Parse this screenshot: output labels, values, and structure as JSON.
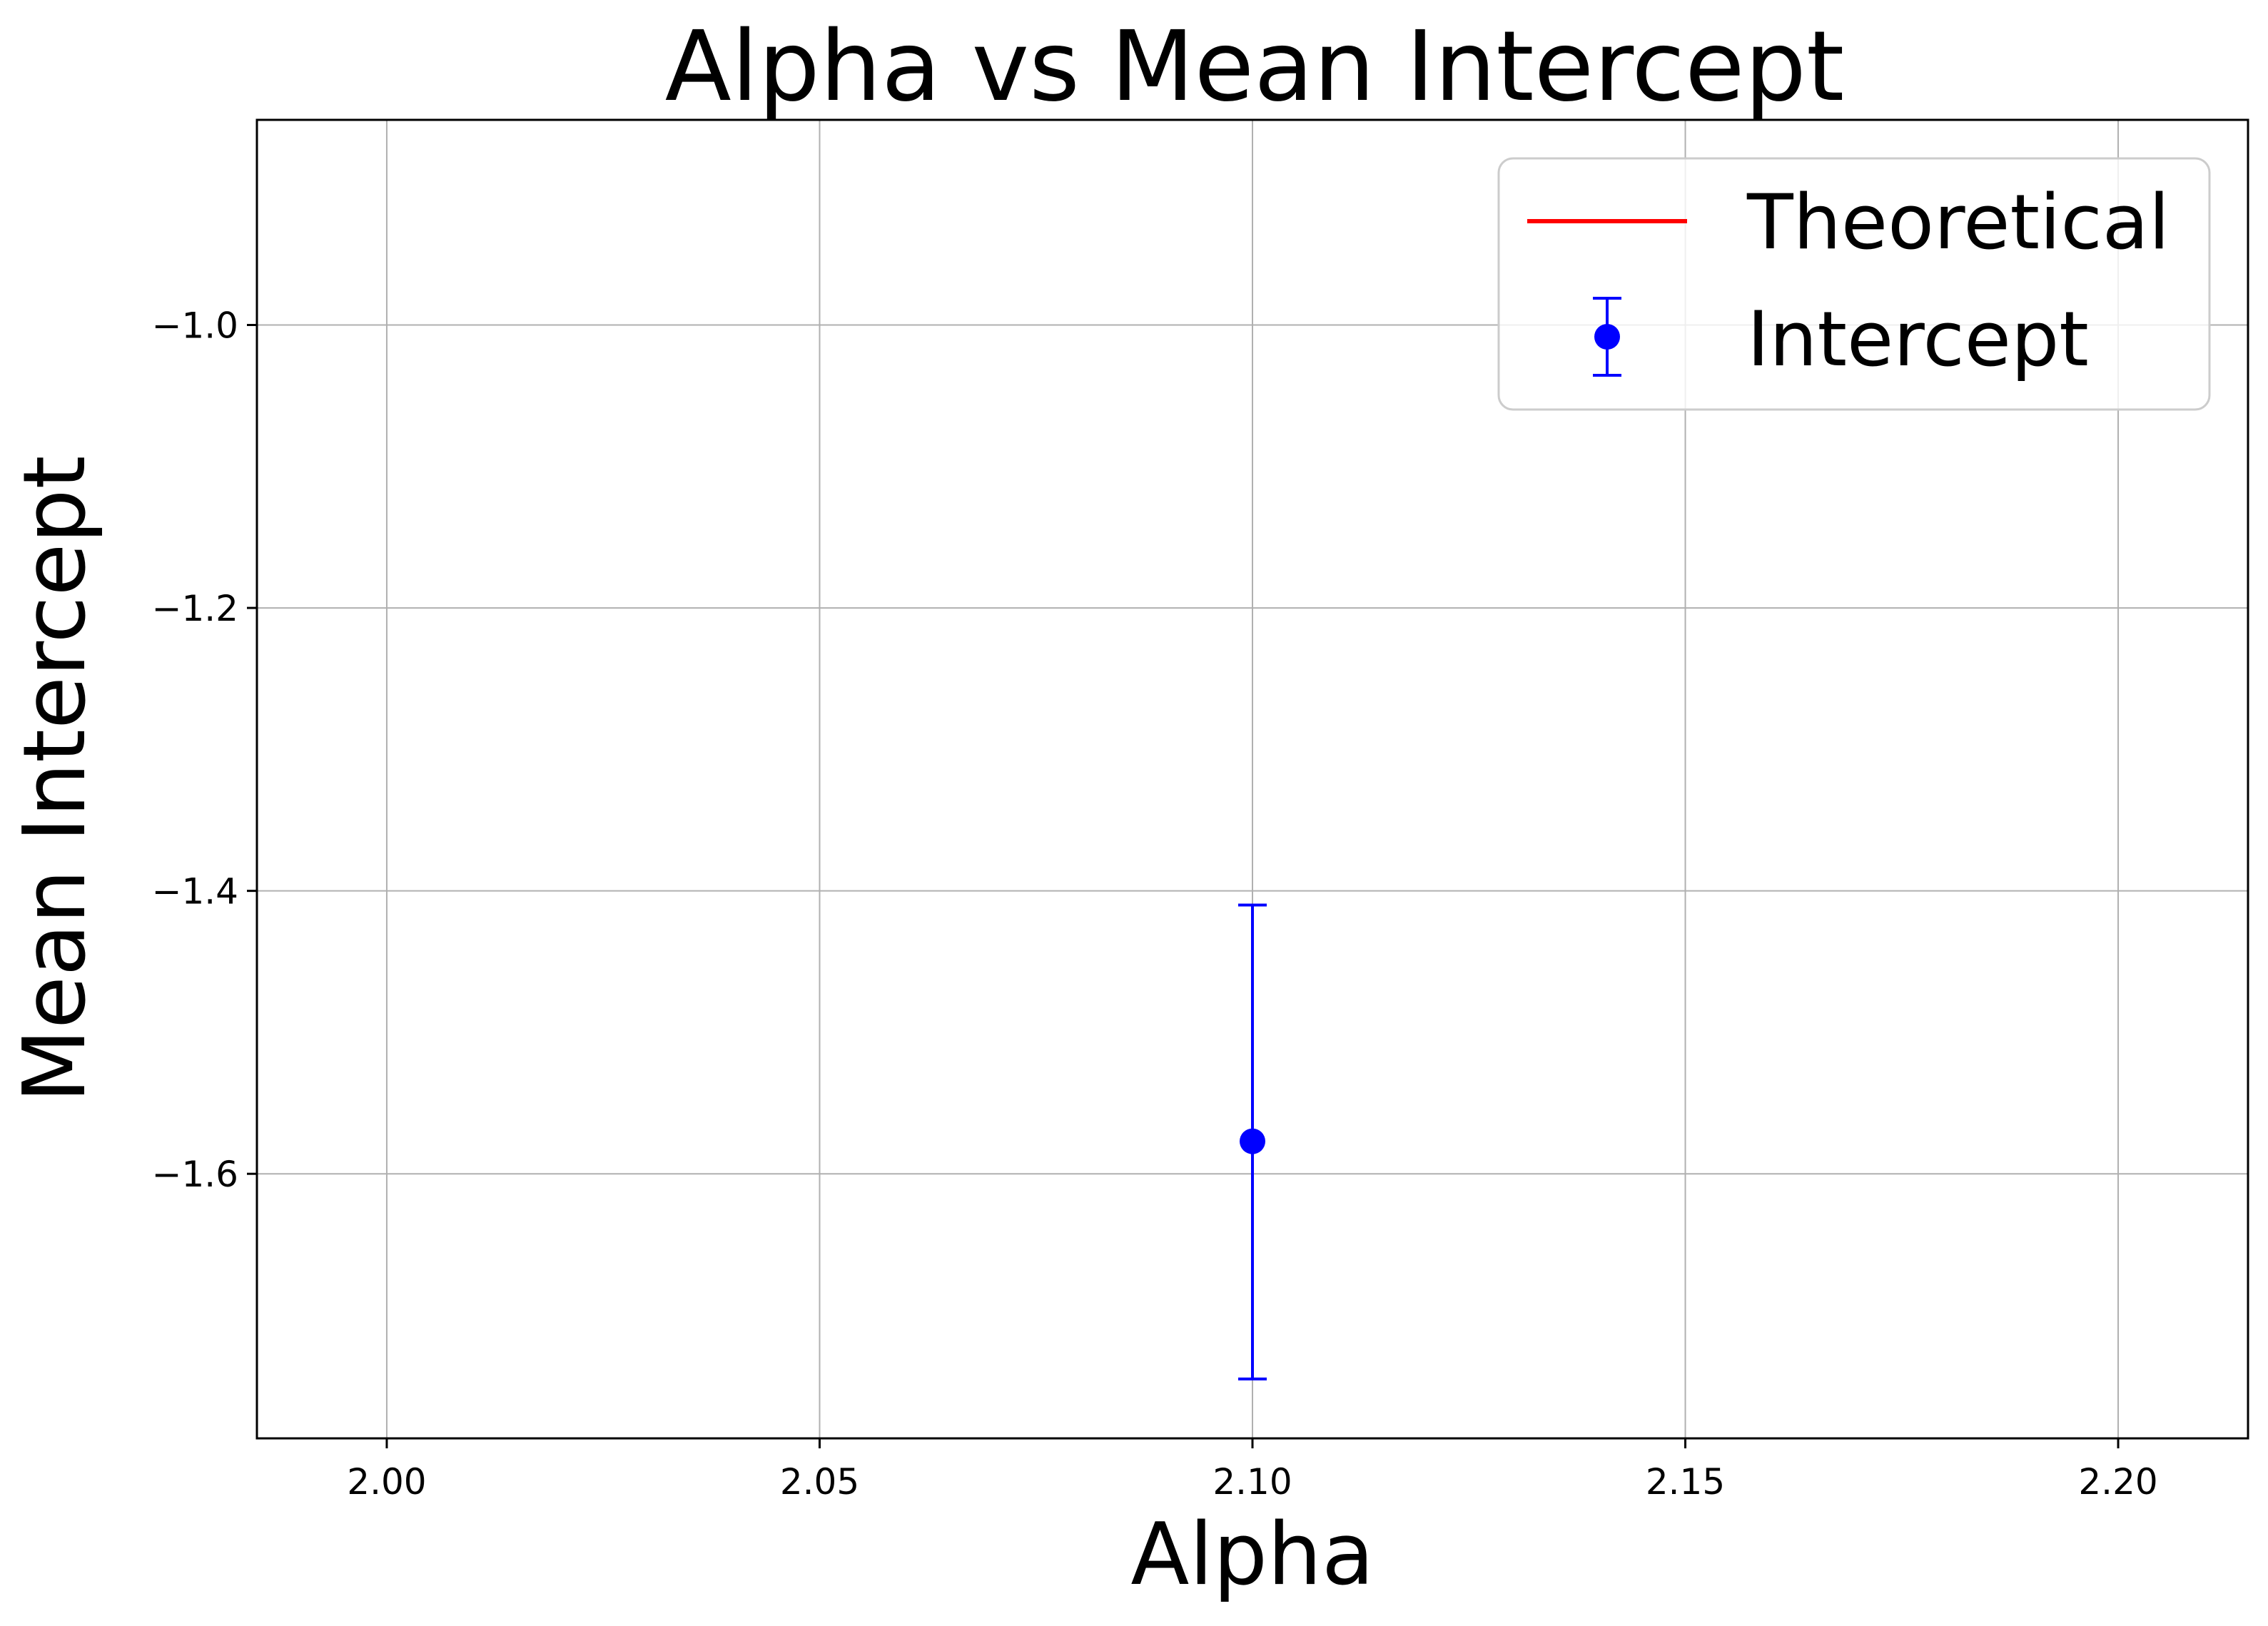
{
  "chart_data": {
    "type": "scatter",
    "title": "Alpha vs Mean Intercept",
    "xlabel": "Alpha",
    "ylabel": "Mean Intercept",
    "xlim": [
      1.985,
      2.215
    ],
    "ylim": [
      -1.787,
      -0.855
    ],
    "xticks": [
      2.0,
      2.05,
      2.1,
      2.15,
      2.2
    ],
    "xtick_labels": [
      "2.00",
      "2.05",
      "2.10",
      "2.15",
      "2.20"
    ],
    "yticks": [
      -1.0,
      -1.2,
      -1.4,
      -1.6
    ],
    "ytick_labels": [
      "−1.0",
      "−1.2",
      "−1.4",
      "−1.6"
    ],
    "grid": true,
    "legend_position": "top-right",
    "series": [
      {
        "name": "Theoretical",
        "kind": "line",
        "color": "#ff0000",
        "x": [],
        "y": []
      },
      {
        "name": "Intercept",
        "kind": "errorbar",
        "color": "#0000ff",
        "x": [
          2.1
        ],
        "y": [
          -1.577
        ],
        "yerr_lower": [
          0.168
        ],
        "yerr_upper": [
          0.167
        ]
      }
    ]
  }
}
